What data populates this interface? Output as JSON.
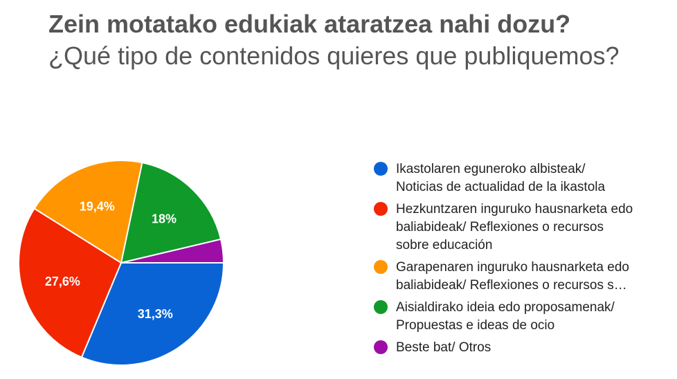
{
  "header": {
    "title": "Zein motatako edukiak ataratzea nahi dozu?",
    "subtitle": "¿Qué tipo de contenidos quieres que publiquemos?"
  },
  "chart_data": {
    "type": "pie",
    "title": "Zein motatako edukiak ataratzea nahi dozu?",
    "subtitle": "¿Qué tipo de contenidos quieres que publiquemos?",
    "legend_position": "right",
    "slices": [
      {
        "legend_lines": [
          "Ikastolaren eguneroko albisteak/",
          "Noticias de actualidad de la ikastola"
        ],
        "value": 31.3,
        "label": "31,3%",
        "color": "#0a63d4"
      },
      {
        "legend_lines": [
          "Hezkuntzaren inguruko hausnarketa edo",
          "baliabideak/ Reflexiones o recursos",
          "sobre educación"
        ],
        "value": 27.6,
        "label": "27,6%",
        "color": "#f22600"
      },
      {
        "legend_lines": [
          "Garapenaren inguruko hausnarketa edo",
          "baliabideak/ Reflexiones o recursos s…"
        ],
        "value": 19.4,
        "label": "19,4%",
        "color": "#ff9500"
      },
      {
        "legend_lines": [
          "Aisialdirako ideia edo proposamenak/",
          "Propuestas e ideas de ocio"
        ],
        "value": 18,
        "label": "18%",
        "color": "#0f9a2a"
      },
      {
        "legend_lines": [
          "Beste bat/ Otros"
        ],
        "value": 3.7,
        "label": "",
        "color": "#9c0ea6"
      }
    ]
  }
}
